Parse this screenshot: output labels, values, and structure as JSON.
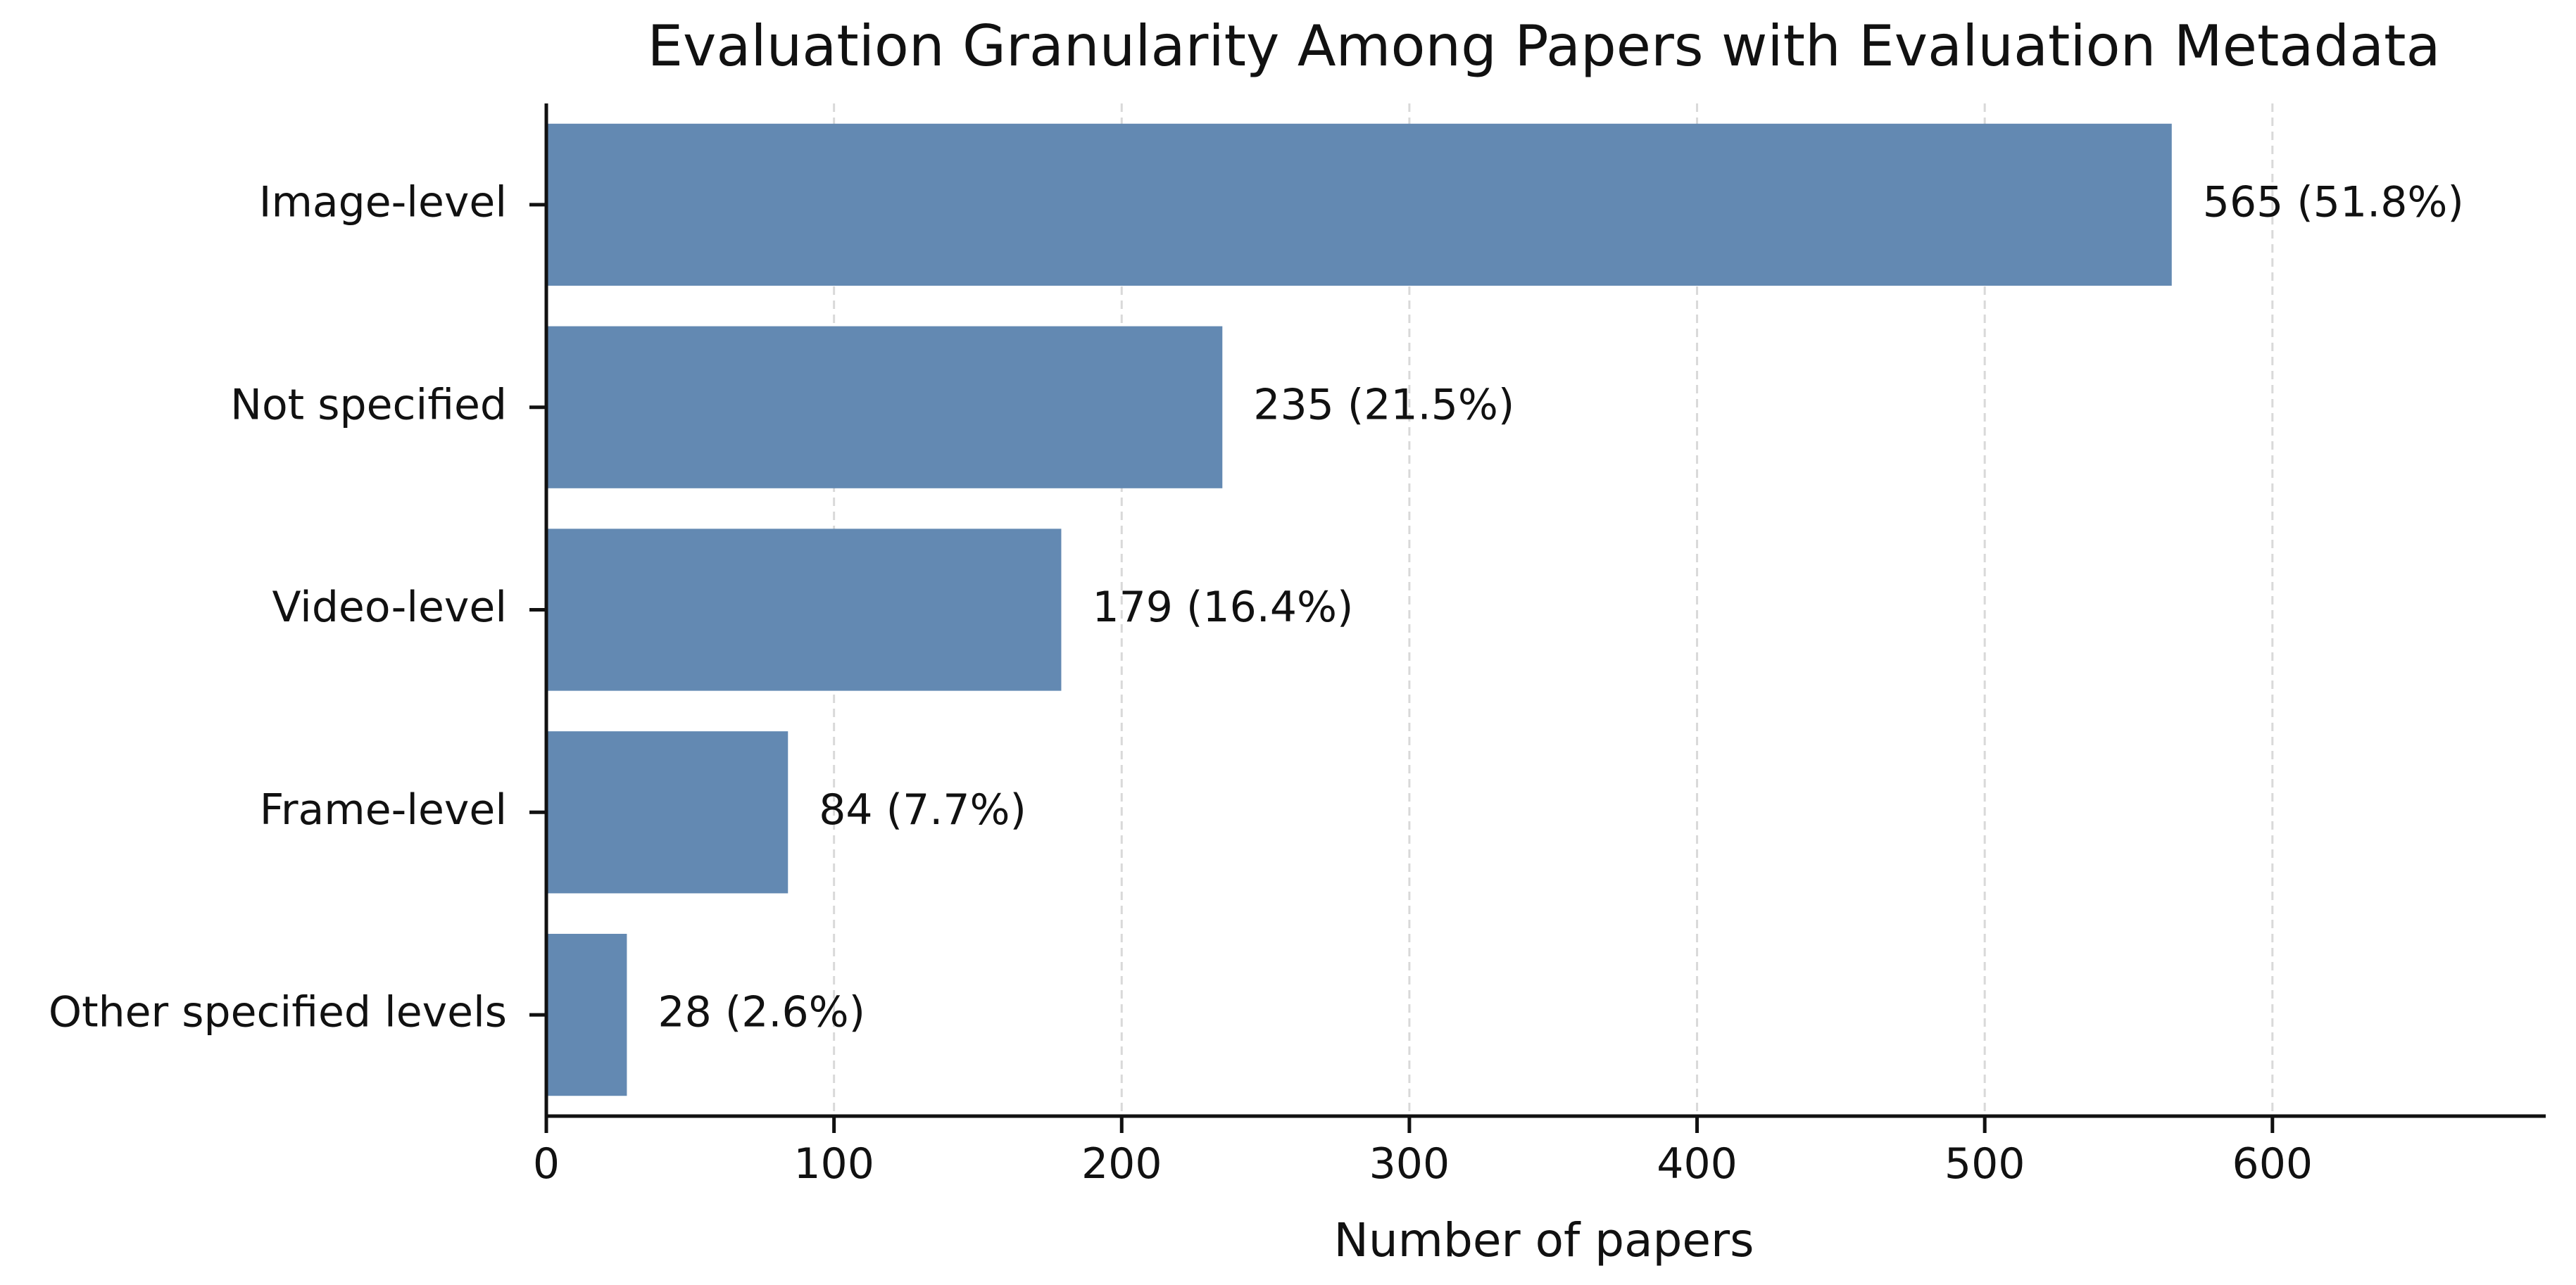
{
  "chart_data": {
    "type": "bar",
    "orientation": "horizontal",
    "title": "Evaluation Granularity Among Papers with Evaluation Metadata",
    "xlabel": "Number of papers",
    "ylabel": "",
    "categories": [
      "Image-level",
      "Not specified",
      "Video-level",
      "Frame-level",
      "Other specified levels"
    ],
    "values": [
      565,
      235,
      179,
      84,
      28
    ],
    "data_labels": [
      "565 (51.8%)",
      "235 (21.5%)",
      "179 (16.4%)",
      "84 (7.7%)",
      "28 (2.6%)"
    ],
    "xlim": [
      0,
      695
    ],
    "x_ticks": [
      0,
      100,
      200,
      300,
      400,
      500,
      600
    ],
    "x_tick_labels": [
      "0",
      "100",
      "200",
      "300",
      "400",
      "500",
      "600"
    ],
    "grid": "x-axis dashed",
    "legend": "none",
    "bar_color": "#6389b2"
  }
}
